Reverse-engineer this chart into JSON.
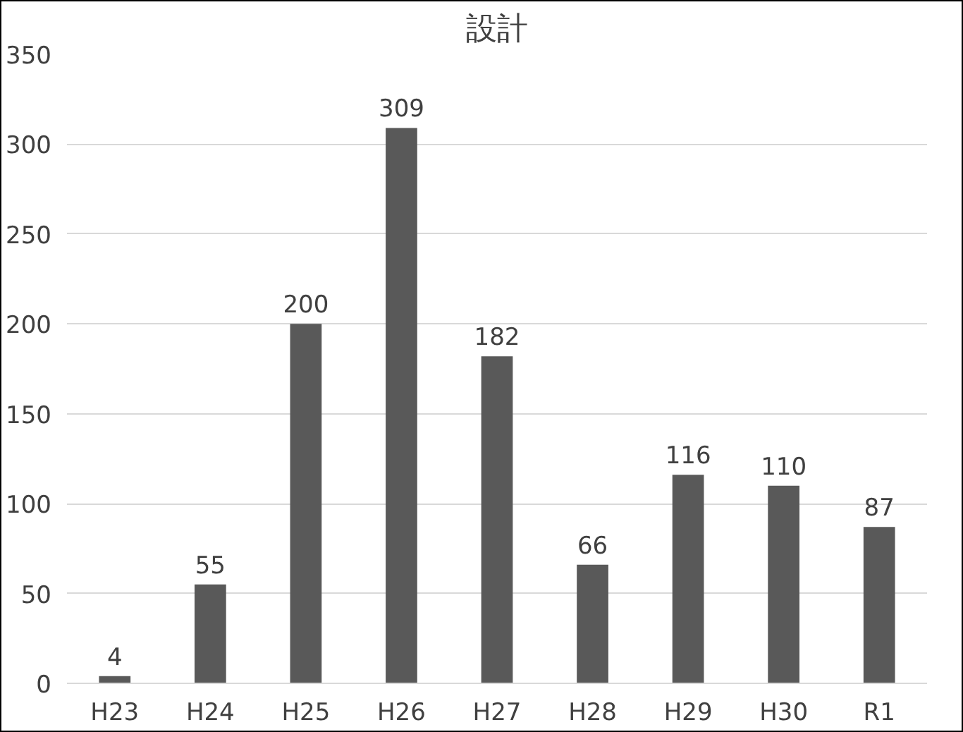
{
  "chart_data": {
    "type": "bar",
    "title": "設計",
    "categories": [
      "H23",
      "H24",
      "H25",
      "H26",
      "H27",
      "H28",
      "H29",
      "H30",
      "R1"
    ],
    "values": [
      4,
      55,
      200,
      309,
      182,
      66,
      116,
      110,
      87
    ],
    "color": "#595959",
    "ylim": [
      0,
      350
    ],
    "yticks": [
      0,
      50,
      100,
      150,
      200,
      250,
      300,
      350
    ],
    "grid": "y",
    "data_labels": true
  }
}
